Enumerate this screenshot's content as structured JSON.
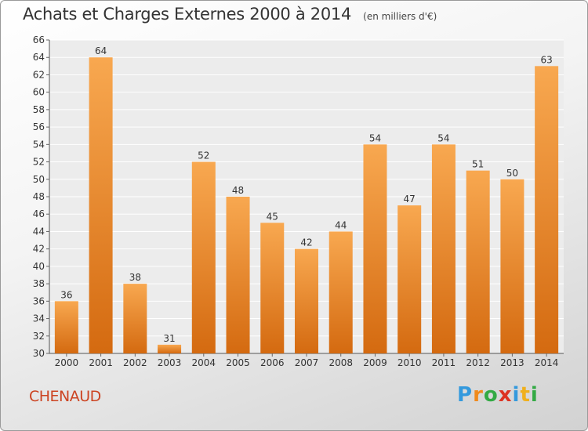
{
  "chart_data": {
    "type": "bar",
    "title": "Achats et Charges Externes 2000 à 2014",
    "unit_note": "(en milliers d'€)",
    "categories": [
      "2000",
      "2001",
      "2002",
      "2003",
      "2004",
      "2005",
      "2006",
      "2007",
      "2008",
      "2009",
      "2010",
      "2011",
      "2012",
      "2013",
      "2014"
    ],
    "values": [
      36,
      64,
      38,
      31,
      52,
      48,
      45,
      42,
      44,
      54,
      47,
      54,
      51,
      50,
      63
    ],
    "ylim": [
      30,
      66
    ],
    "yticks": [
      30,
      32,
      34,
      36,
      38,
      40,
      42,
      44,
      46,
      48,
      50,
      52,
      54,
      56,
      58,
      60,
      62,
      64,
      66
    ],
    "grid": true,
    "bar_color_light": "#f8a850",
    "bar_color_dark": "#d46a10",
    "xlabel": "",
    "ylabel": ""
  },
  "commune": "CHENAUD",
  "logo": {
    "letters": [
      "P",
      "r",
      "o",
      "x",
      "i",
      "t",
      "i"
    ],
    "colors": [
      "#3399dd",
      "#f08a1c",
      "#33aa44",
      "#dd3322",
      "#3399dd",
      "#f0b01c",
      "#33aa44"
    ]
  }
}
